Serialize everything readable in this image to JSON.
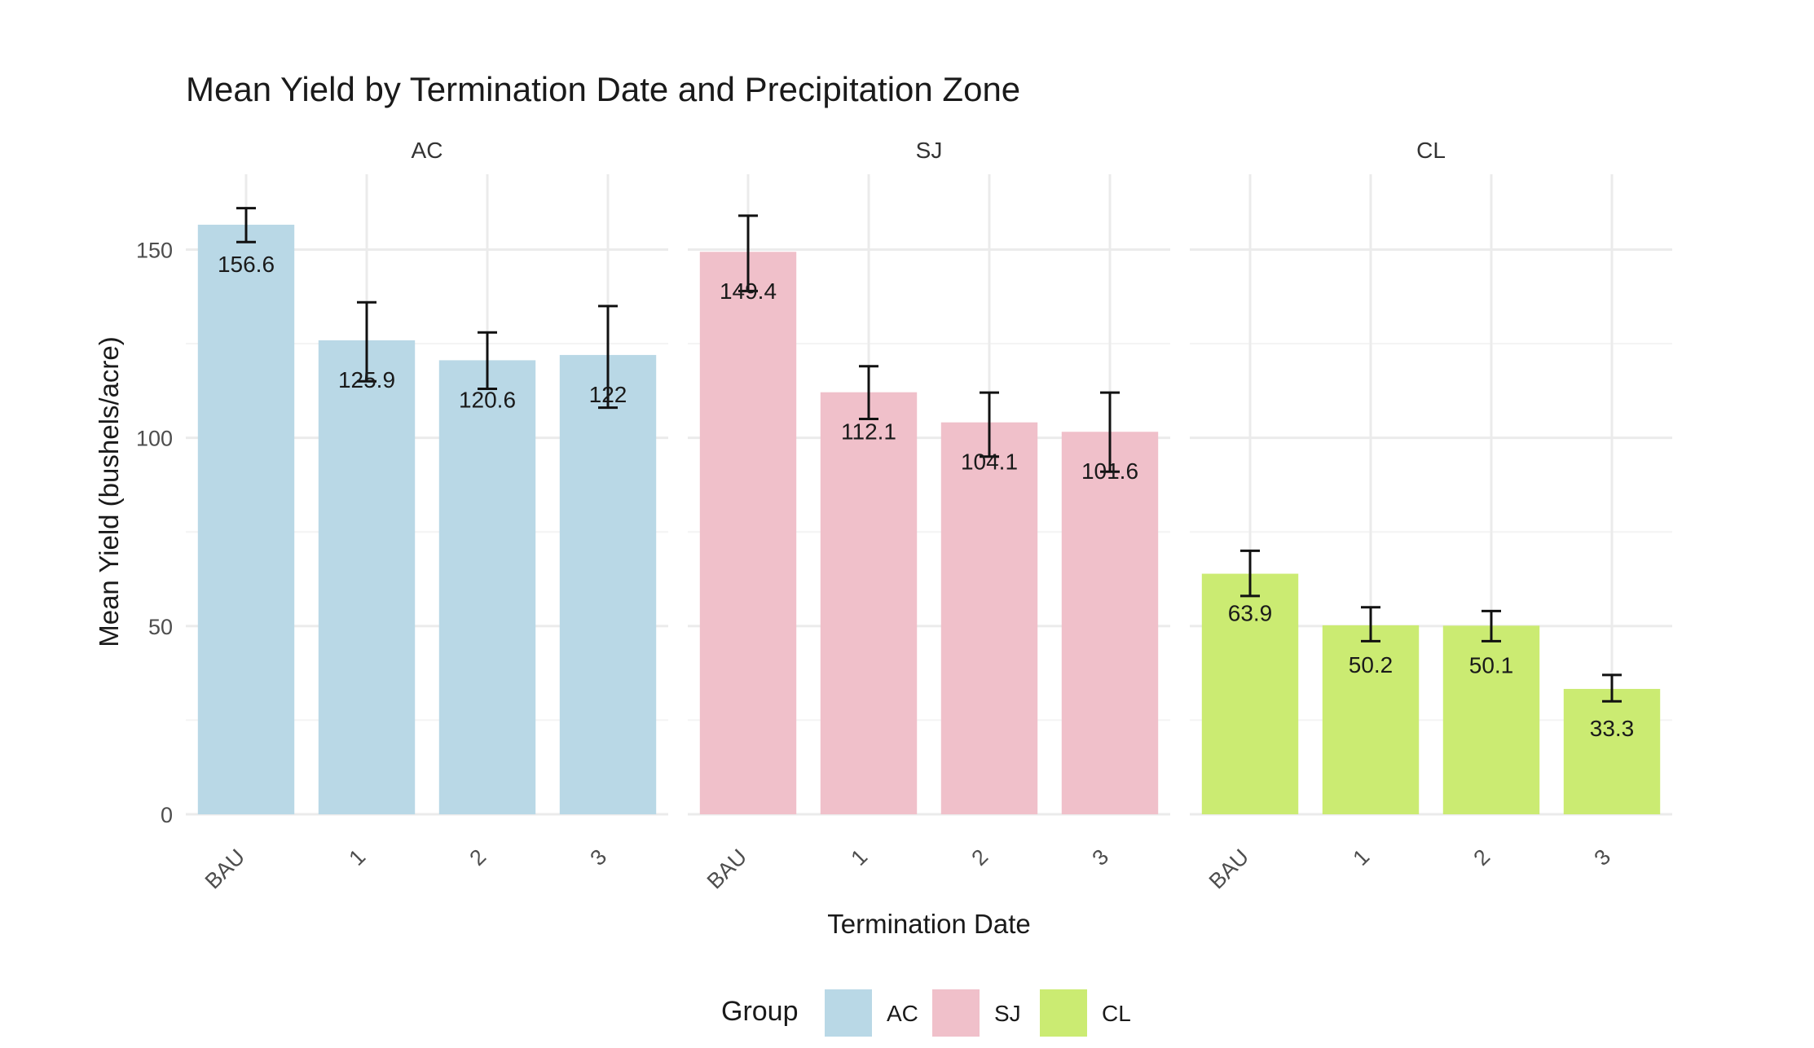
{
  "chart_data": {
    "type": "bar",
    "title": "Mean Yield by Termination Date and Precipitation Zone",
    "xlabel": "Termination Date",
    "ylabel": "Mean Yield (bushels/acre)",
    "ylim": [
      0,
      170
    ],
    "y_ticks": [
      0,
      50,
      100,
      150
    ],
    "grid": true,
    "categories": [
      "BAU",
      "1",
      "2",
      "3"
    ],
    "series": [
      {
        "name": "AC",
        "color": "#b9d8e6",
        "values": [
          156.6,
          125.9,
          120.6,
          122
        ],
        "labels": [
          "156.6",
          "125.9",
          "120.6",
          "122"
        ],
        "error_low": [
          152,
          115,
          113,
          108
        ],
        "error_high": [
          161,
          136,
          128,
          135
        ]
      },
      {
        "name": "SJ",
        "color": "#f0c0ca",
        "values": [
          149.4,
          112.1,
          104.1,
          101.6
        ],
        "labels": [
          "149.4",
          "112.1",
          "104.1",
          "101.6"
        ],
        "error_low": [
          139,
          105,
          95,
          91
        ],
        "error_high": [
          159,
          119,
          112,
          112
        ]
      },
      {
        "name": "CL",
        "color": "#cbeb72",
        "values": [
          63.9,
          50.2,
          50.1,
          33.3
        ],
        "labels": [
          "63.9",
          "50.2",
          "50.1",
          "33.3"
        ],
        "error_low": [
          58,
          46,
          46,
          30
        ],
        "error_high": [
          70,
          55,
          54,
          37
        ]
      }
    ],
    "legend": {
      "title": "Group",
      "position": "bottom",
      "entries": [
        "AC",
        "SJ",
        "CL"
      ]
    }
  }
}
